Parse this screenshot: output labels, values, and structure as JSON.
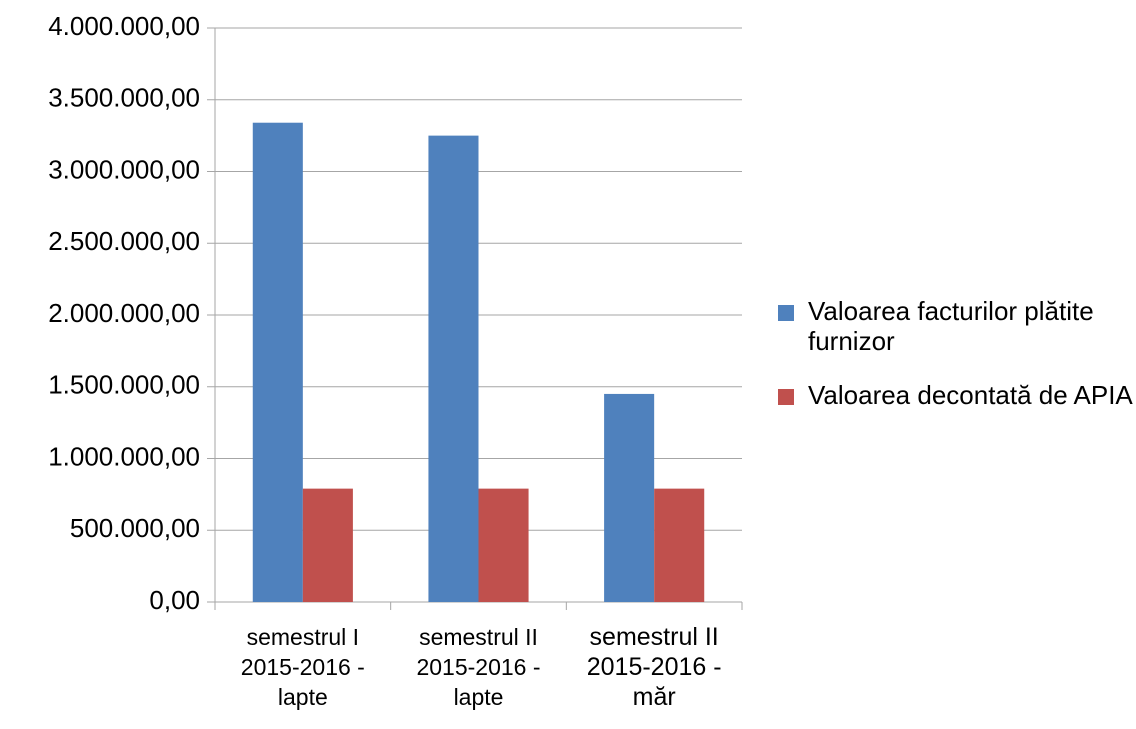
{
  "chart_data": {
    "type": "bar",
    "categories": [
      "semestrul I 2015-2016 - lapte",
      "semestrul II 2015-2016 - lapte",
      "semestrul II 2015-2016 - măr"
    ],
    "series": [
      {
        "name": "Valoarea facturilor plătite furnizor",
        "color": "#4f81bd",
        "values": [
          3340000,
          3250000,
          1450000
        ]
      },
      {
        "name": "Valoarea decontată de APIA",
        "color": "#c0504d",
        "values": [
          790000,
          790000,
          790000
        ]
      }
    ],
    "ylim": [
      0,
      4000000
    ],
    "yticks": [
      {
        "value": 0,
        "label": "0,00"
      },
      {
        "value": 500000,
        "label": "500.000,00"
      },
      {
        "value": 1000000,
        "label": "1.000.000,00"
      },
      {
        "value": 1500000,
        "label": "1.500.000,00"
      },
      {
        "value": 2000000,
        "label": "2.000.000,00"
      },
      {
        "value": 2500000,
        "label": "2.500.000,00"
      },
      {
        "value": 3000000,
        "label": "3.000.000,00"
      },
      {
        "value": 3500000,
        "label": "3.500.000,00"
      },
      {
        "value": 4000000,
        "label": "4.000.000,00"
      }
    ],
    "grid": true,
    "legend": "right"
  }
}
